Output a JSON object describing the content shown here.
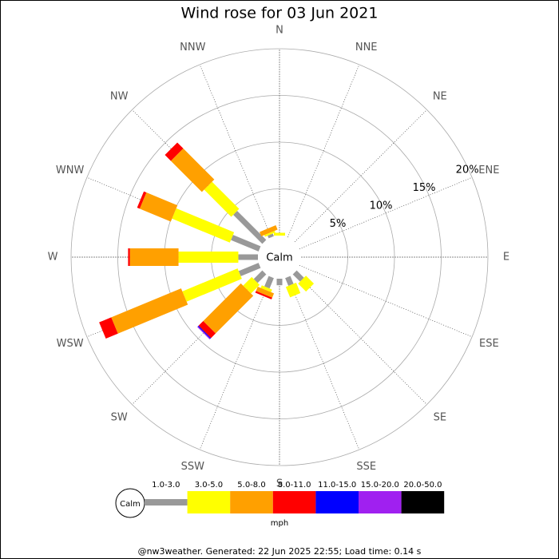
{
  "chart_data": {
    "type": "windrose",
    "title": "Wind rose for 03 Jun 2021",
    "categories": [
      "N",
      "NNE",
      "NE",
      "ENE",
      "E",
      "ESE",
      "SE",
      "SSE",
      "S",
      "SSW",
      "SW",
      "WSW",
      "W",
      "WNW",
      "NW",
      "NNW"
    ],
    "calm_label": "Calm",
    "rlim": [
      0,
      20
    ],
    "rticks": [
      {
        "value": 5,
        "label": "5%"
      },
      {
        "value": 10,
        "label": "10%"
      },
      {
        "value": 15,
        "label": "15%"
      },
      {
        "value": 20,
        "label": "20%"
      }
    ],
    "unit": "mph",
    "series": [
      {
        "name": "1.0-3.0",
        "color": "#999999",
        "values": [
          0,
          0,
          0,
          0,
          0,
          0,
          1.1,
          0.9,
          0.7,
          1.2,
          1.3,
          2.3,
          2.1,
          3.2,
          4.4,
          0.3
        ]
      },
      {
        "name": "3.0-5.0",
        "color": "#ffff00",
        "values": [
          0.3,
          0,
          0,
          0,
          0,
          0,
          1.2,
          1.2,
          0,
          0.3,
          1.3,
          6.4,
          6.4,
          6.7,
          4.1,
          0.2
        ]
      },
      {
        "name": "5.0-8.0",
        "color": "#ffa000",
        "values": [
          0,
          0,
          0,
          0,
          0,
          0,
          0,
          0,
          0,
          0.5,
          5.7,
          8.1,
          5.2,
          3.6,
          4.7,
          0.5
        ]
      },
      {
        "name": "8.0-11.0",
        "color": "#ff0000",
        "values": [
          0,
          0,
          0,
          0,
          0,
          0,
          0,
          0,
          0,
          0.2,
          0.7,
          1.4,
          0.2,
          0.3,
          0.9,
          0
        ]
      },
      {
        "name": "11.0-15.0",
        "color": "#0000ff",
        "values": [
          0,
          0,
          0,
          0,
          0,
          0,
          0,
          0,
          0,
          0,
          0.1,
          0,
          0,
          0,
          0,
          0
        ]
      },
      {
        "name": "15.0-20.0",
        "color": "#a020f0",
        "values": [
          0,
          0,
          0,
          0,
          0,
          0,
          0,
          0,
          0,
          0,
          0.1,
          0,
          0,
          0,
          0,
          0
        ]
      },
      {
        "name": "20.0-50.0",
        "color": "#000000",
        "values": [
          0,
          0,
          0,
          0,
          0,
          0,
          0,
          0,
          0,
          0,
          0,
          0,
          0,
          0,
          0,
          0
        ]
      }
    ],
    "footer": "@nw3weather. Generated: 22 Jun 2025 22:55; Load time: 0.14 s"
  }
}
